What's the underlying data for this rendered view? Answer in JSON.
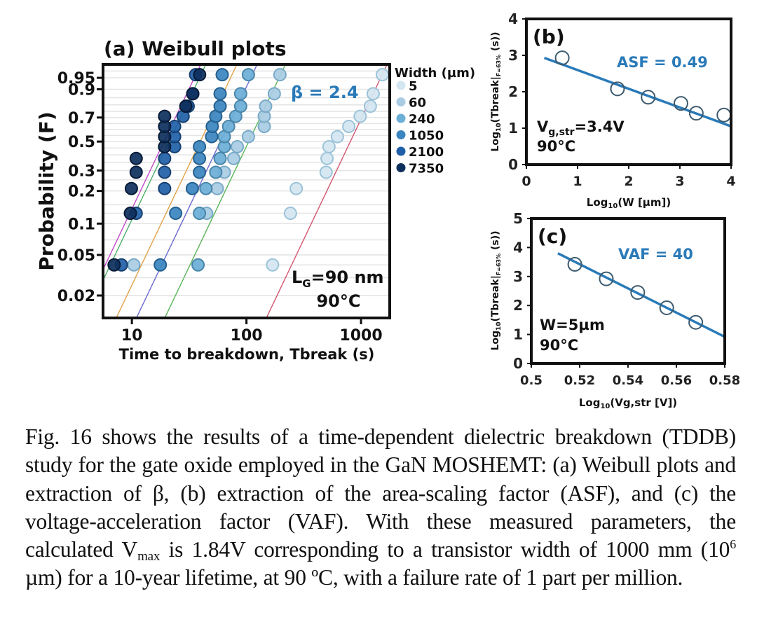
{
  "figure": {
    "panel_a": {
      "title": "(a) Weibull plots",
      "beta_label": "β = 2.4",
      "annotation_lg_main": "L",
      "annotation_lg_sub": "G",
      "annotation_lg_rest": "=90 nm",
      "annotation_temp": "90°C",
      "legend_title": "Width (µm)"
    },
    "panel_b": {
      "title": "(b)",
      "fit_label": "ASF = 0.49",
      "cond_v_main": "V",
      "cond_v_sub": "g,str",
      "cond_v_rest": "=3.4V",
      "cond_temp": "90°C"
    },
    "panel_c": {
      "title": "(c)",
      "fit_label": "VAF = 40",
      "cond_w": "W=5µm",
      "cond_temp": "90°C"
    },
    "accent_color": "#2a7ab8"
  },
  "chart_data": [
    {
      "id": "weibull",
      "type": "scatter",
      "title": "(a) Weibull plots",
      "xlabel": "Time to breakdown, Tbreak (s)",
      "ylabel": "Probability (F)",
      "xscale": "log",
      "yscale": "weibull",
      "xlim": [
        5.6,
        1780
      ],
      "ylim": [
        0.012,
        0.983
      ],
      "xticks": [
        10,
        100,
        1000
      ],
      "xtick_labels": [
        "10",
        "100",
        "1000"
      ],
      "yticks": [
        0.95,
        0.9,
        0.7,
        0.5,
        0.3,
        0.2,
        0.1,
        0.05,
        0.02
      ],
      "ytick_labels": [
        "0.95",
        "0.9",
        "0.7",
        "0.5",
        "0.3",
        "0.2",
        "0.1",
        "0.05",
        "0.02"
      ],
      "grid": true,
      "legend_title": "Width (µm)",
      "legend_position": "right-outside",
      "F_levels": [
        0.04,
        0.125,
        0.21,
        0.29,
        0.375,
        0.46,
        0.54,
        0.625,
        0.71,
        0.79,
        0.875,
        0.96
      ],
      "series": [
        {
          "name": "5",
          "color": "#d4e6f1",
          "edge": "#9cc3d8",
          "t": [
            169,
            242,
            272,
            496,
            505,
            525,
            622,
            782,
            983,
            1206,
            1277,
            1535
          ]
        },
        {
          "name": "60",
          "color": "#a9cce3",
          "edge": "#79aac8",
          "t": [
            10.4,
            44.9,
            55.6,
            64.1,
            77.4,
            83.2,
            104,
            143,
            143,
            147,
            175,
            196
          ]
        },
        {
          "name": "240",
          "color": "#6baed6",
          "edge": "#4a86aa",
          "t": [
            37.8,
            38.9,
            44.3,
            54,
            58.9,
            64.1,
            64.1,
            69.9,
            80.6,
            89,
            89,
            104
          ]
        },
        {
          "name": "1050",
          "color": "#3a85c0",
          "edge": "#24608f",
          "t": [
            17.7,
            24.1,
            33.7,
            38.9,
            38.9,
            38.9,
            49.7,
            50.3,
            54,
            58.9,
            58.9,
            61.4
          ]
        },
        {
          "name": "2100",
          "color": "#1f5fa8",
          "edge": "#163f6f",
          "t": [
            8.1,
            10.9,
            19.3,
            19.3,
            19.3,
            23.6,
            23.6,
            23.6,
            28,
            31,
            34,
            36
          ]
        },
        {
          "name": "7350",
          "color": "#0d2f5c",
          "edge": "#071a36",
          "t": [
            7.0,
            9.7,
            9.9,
            10.9,
            10.9,
            19.3,
            19.3,
            19.3,
            19.3,
            29.6,
            34,
            39
          ]
        }
      ],
      "fit_lines": {
        "beta": 2.4,
        "lines": [
          {
            "for": "7350",
            "eta": 22.2,
            "color": "#c04bc8"
          },
          {
            "for": "2100",
            "eta": 24.6,
            "color": "#4fae6a"
          },
          {
            "for": "1050",
            "eta": 46,
            "color": "#e0a24a"
          },
          {
            "for": "240",
            "eta": 69,
            "color": "#6a6ad0"
          },
          {
            "for": "60",
            "eta": 122,
            "color": "#5ab55a"
          },
          {
            "for": "5",
            "eta": 940,
            "color": "#d2566e"
          }
        ]
      },
      "annotations": [
        "β = 2.4",
        "LG=90 nm",
        "90°C"
      ]
    },
    {
      "id": "asf",
      "type": "scatter",
      "title": "(b)",
      "xlabel": "Log10(W [µm])",
      "ylabel": "Log10(Tbreak|F=63% (s))",
      "xlim": [
        0,
        4
      ],
      "ylim": [
        0,
        4
      ],
      "xticks": [
        0,
        1,
        2,
        3,
        4
      ],
      "xtick_labels": [
        "0",
        "1",
        "2",
        "3",
        "4"
      ],
      "yticks": [
        0,
        1,
        2,
        3,
        4
      ],
      "ytick_labels": [
        "0",
        "1",
        "2",
        "3",
        "4"
      ],
      "grid": false,
      "x": [
        0.7,
        1.78,
        2.38,
        3.02,
        3.32,
        3.86
      ],
      "y": [
        2.93,
        2.08,
        1.85,
        1.68,
        1.41,
        1.36
      ],
      "fit": {
        "x": [
          0.35,
          4.1
        ],
        "y": [
          2.93,
          1.0
        ],
        "color": "#2a7ab8"
      },
      "annotations": [
        "ASF = 0.49",
        "Vg,str=3.4V",
        "90°C"
      ]
    },
    {
      "id": "vaf",
      "type": "scatter",
      "title": "(c)",
      "xlabel": "Log10(Vg,str [V])",
      "ylabel": "Log10(Tbreak|F=63% (s))",
      "xlim": [
        0.5,
        0.58
      ],
      "ylim": [
        0,
        5
      ],
      "xticks": [
        0.5,
        0.52,
        0.54,
        0.56,
        0.58
      ],
      "xtick_labels": [
        "0.5",
        "0.52",
        "0.54",
        "0.56",
        "0.58"
      ],
      "yticks": [
        0,
        1,
        2,
        3,
        4,
        5
      ],
      "ytick_labels": [
        "0",
        "1",
        "2",
        "3",
        "4",
        "5"
      ],
      "grid": false,
      "x": [
        0.518,
        0.531,
        0.544,
        0.556,
        0.568
      ],
      "y": [
        3.42,
        2.92,
        2.45,
        1.92,
        1.42
      ],
      "fit": {
        "x": [
          0.511,
          0.58
        ],
        "y": [
          3.8,
          0.92
        ],
        "color": "#2a7ab8"
      },
      "annotations": [
        "VAF = 40",
        "W=5µm",
        "90°C"
      ]
    }
  ],
  "caption": {
    "p1": "Fig. 16 shows the results of a time-dependent dielectric breakdown (TDDB) study for the gate oxide employed in the GaN MOSHEMT: (a) Weibull plots and extraction of β, (b) extraction of the area-scaling factor (ASF), and (c) the voltage-acceleration factor (VAF).  With these measured parameters, the calculated V",
    "vmax_sub": "max",
    "p2": " is 1.84V corresponding to a transistor width of 1000 mm (10",
    "exp_sup": "6",
    "p3": " µm) for a 10-year lifetime, at 90 ºC, with a failure rate of 1 part per million."
  }
}
